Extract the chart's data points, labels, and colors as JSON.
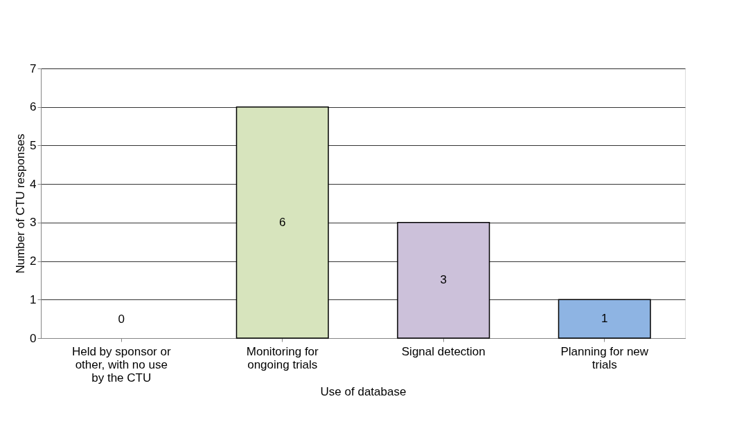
{
  "chart_data": {
    "type": "bar",
    "xlabel": "Use of database",
    "ylabel": "Number of CTU responses",
    "categories": [
      "Held by sponsor or other, with no use by the CTU",
      "Monitoring for ongoing trials",
      "Signal detection",
      "Planning for new trials"
    ],
    "values": [
      0,
      6,
      3,
      1
    ],
    "colors": [
      "#d7e4bd",
      "#d7e4bd",
      "#ccc1da",
      "#8eb4e3"
    ],
    "ylim": [
      0,
      7
    ],
    "yticks": [
      0,
      1,
      2,
      3,
      4,
      5,
      6,
      7
    ],
    "grid": "y",
    "data_labels": true
  }
}
